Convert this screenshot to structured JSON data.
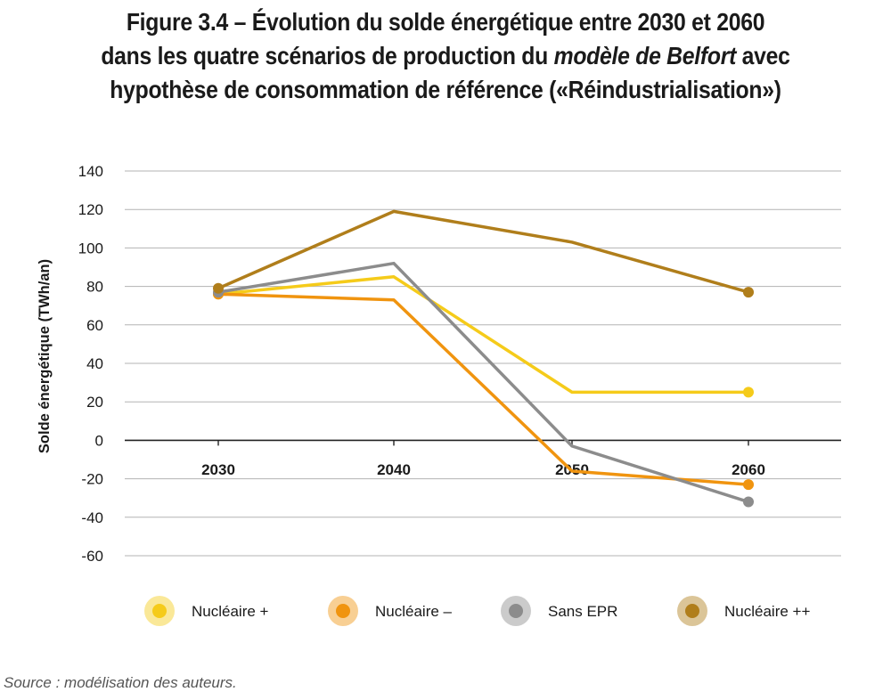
{
  "title": {
    "line1": "Figure 3.4 – Évolution du solde énergétique entre 2030 et 2060",
    "line2_pre": "dans les quatre scénarios de production du ",
    "line2_em": "modèle de Belfort",
    "line2_post": " avec",
    "line3": "hypothèse de consommation de référence («Réindustrialisation»)"
  },
  "source": "Source : modélisation des auteurs.",
  "chart_data": {
    "type": "line",
    "title": "Figure 3.4 – Évolution du solde énergétique entre 2030 et 2060 dans les quatre scénarios de production du modèle de Belfort avec hypothèse de consommation de référence («Réindustrialisation»)",
    "ylabel": "Solde énergétique (TWh/an)",
    "xlabel": "",
    "x": [
      "2030",
      "2040",
      "2050",
      "2060"
    ],
    "ylim": [
      -60,
      140
    ],
    "yticks": [
      140,
      120,
      100,
      80,
      60,
      40,
      20,
      0,
      -20,
      -40,
      -60
    ],
    "grid": true,
    "legend": "bottom",
    "series": [
      {
        "name": "Nucléaire +",
        "color": "#F5CB1A",
        "values": [
          76,
          85,
          25,
          25
        ]
      },
      {
        "name": "Nucléaire –",
        "color": "#F0940F",
        "values": [
          76,
          73,
          -16,
          -23
        ]
      },
      {
        "name": "Sans EPR",
        "color": "#8C8C8C",
        "values": [
          77,
          92,
          -3,
          -32
        ]
      },
      {
        "name": "Nucléaire ++",
        "color": "#B07E1B",
        "values": [
          79,
          119,
          103,
          77
        ]
      }
    ]
  }
}
